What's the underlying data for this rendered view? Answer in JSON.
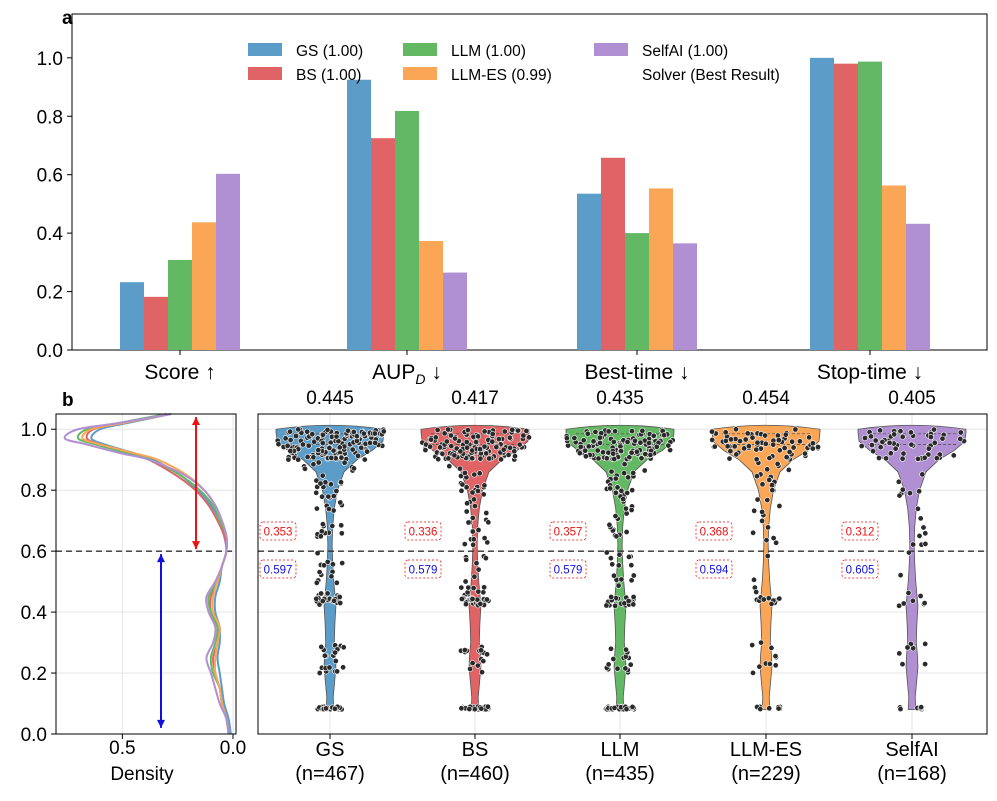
{
  "colors": {
    "gs": "#5b9cc9",
    "bs": "#e06466",
    "llm": "#63b863",
    "llmes": "#fba556",
    "selfai": "#b08fd2",
    "axis": "#000000",
    "grid": "#e6e6e6",
    "red_arrow": "#ee1111",
    "blue_arrow": "#1111dd"
  },
  "chart_data": [
    {
      "type": "bar",
      "panel_label": "a",
      "categories": [
        "Score ↑",
        "AUP_D ↓",
        "Best-time ↓",
        "Stop-time ↓"
      ],
      "category_auP": {
        "base": "AUP",
        "sub": "D",
        "suffix": " ↓"
      },
      "series": [
        {
          "key": "gs",
          "name": "GS (1.00)",
          "values": [
            0.232,
            0.925,
            0.535,
            1.0
          ]
        },
        {
          "key": "bs",
          "name": "BS (1.00)",
          "values": [
            0.182,
            0.725,
            0.658,
            0.98
          ]
        },
        {
          "key": "llm",
          "name": "LLM (1.00)",
          "values": [
            0.308,
            0.818,
            0.4,
            0.987
          ]
        },
        {
          "key": "llmes",
          "name": "LLM-ES (0.99)",
          "values": [
            0.437,
            0.373,
            0.553,
            0.563
          ]
        },
        {
          "key": "selfai",
          "name": "SelfAI (1.00)",
          "values": [
            0.603,
            0.265,
            0.365,
            0.432
          ]
        }
      ],
      "legend_extra": "Solver (Best Result)",
      "ylim": [
        0,
        1.15
      ],
      "yticks": [
        "0.0",
        "0.2",
        "0.4",
        "0.6",
        "0.8",
        "1.0"
      ],
      "grid": false,
      "legend_position": "upper-center"
    },
    {
      "type": "line",
      "panel_label": "b",
      "xlabel": "Density",
      "xticks": [
        "0.5",
        "0.0"
      ],
      "xlim": [
        0.8,
        0.0
      ],
      "ylim": [
        0,
        1.05
      ],
      "yticks": [
        "0.0",
        "0.2",
        "0.4",
        "0.6",
        "0.8",
        "1.0"
      ],
      "threshold": 0.6,
      "y": [
        0.0,
        0.05,
        0.1,
        0.15,
        0.2,
        0.25,
        0.3,
        0.35,
        0.4,
        0.45,
        0.5,
        0.55,
        0.6,
        0.65,
        0.7,
        0.75,
        0.8,
        0.85,
        0.9,
        0.92,
        0.95,
        0.97,
        1.0,
        1.02,
        1.05
      ],
      "series": [
        {
          "key": "gs",
          "density": [
            0.01,
            0.02,
            0.04,
            0.05,
            0.06,
            0.07,
            0.06,
            0.06,
            0.08,
            0.08,
            0.06,
            0.05,
            0.03,
            0.04,
            0.06,
            0.1,
            0.16,
            0.24,
            0.36,
            0.44,
            0.58,
            0.64,
            0.6,
            0.48,
            0.28
          ]
        },
        {
          "key": "bs",
          "density": [
            0.02,
            0.03,
            0.05,
            0.06,
            0.08,
            0.09,
            0.07,
            0.07,
            0.1,
            0.1,
            0.07,
            0.05,
            0.03,
            0.04,
            0.07,
            0.11,
            0.17,
            0.26,
            0.38,
            0.46,
            0.6,
            0.66,
            0.63,
            0.5,
            0.3
          ]
        },
        {
          "key": "llm",
          "density": [
            0.02,
            0.03,
            0.05,
            0.06,
            0.09,
            0.1,
            0.08,
            0.07,
            0.1,
            0.11,
            0.07,
            0.05,
            0.03,
            0.03,
            0.06,
            0.09,
            0.15,
            0.24,
            0.37,
            0.47,
            0.62,
            0.7,
            0.66,
            0.52,
            0.3
          ]
        },
        {
          "key": "llmes",
          "density": [
            0.02,
            0.03,
            0.05,
            0.06,
            0.08,
            0.08,
            0.07,
            0.06,
            0.09,
            0.09,
            0.07,
            0.05,
            0.03,
            0.03,
            0.05,
            0.08,
            0.13,
            0.21,
            0.34,
            0.44,
            0.6,
            0.68,
            0.64,
            0.5,
            0.28
          ]
        },
        {
          "key": "selfai",
          "density": [
            0.02,
            0.03,
            0.06,
            0.08,
            0.1,
            0.12,
            0.09,
            0.08,
            0.11,
            0.12,
            0.08,
            0.05,
            0.03,
            0.03,
            0.05,
            0.08,
            0.13,
            0.22,
            0.38,
            0.5,
            0.66,
            0.76,
            0.7,
            0.52,
            0.28
          ]
        }
      ]
    },
    {
      "type": "scatter",
      "subtype": "violin",
      "ylim": [
        0,
        1.05
      ],
      "threshold": 0.6,
      "grid": true,
      "groups": [
        {
          "key": "gs",
          "label": "GS",
          "n_label": "(n=467)",
          "n": 467,
          "mean": "0.445",
          "above": "0.353",
          "below": "0.597"
        },
        {
          "key": "bs",
          "label": "BS",
          "n_label": "(n=460)",
          "n": 460,
          "mean": "0.417",
          "above": "0.336",
          "below": "0.579"
        },
        {
          "key": "llm",
          "label": "LLM",
          "n_label": "(n=435)",
          "n": 435,
          "mean": "0.435",
          "above": "0.357",
          "below": "0.579"
        },
        {
          "key": "llmes",
          "label": "LLM-ES",
          "n_label": "(n=229)",
          "n": 229,
          "mean": "0.454",
          "above": "0.368",
          "below": "0.594"
        },
        {
          "key": "selfai",
          "label": "SelfAI",
          "n_label": "(n=168)",
          "n": 168,
          "mean": "0.405",
          "above": "0.312",
          "below": "0.605"
        }
      ],
      "violin_profile": {
        "y": [
          0.08,
          0.12,
          0.18,
          0.22,
          0.26,
          0.3,
          0.36,
          0.42,
          0.46,
          0.5,
          0.56,
          0.62,
          0.68,
          0.74,
          0.8,
          0.86,
          0.9,
          0.93,
          0.96,
          0.99
        ],
        "halfwidth": [
          0.07,
          0.06,
          0.09,
          0.11,
          0.1,
          0.08,
          0.09,
          0.11,
          0.09,
          0.07,
          0.05,
          0.04,
          0.05,
          0.08,
          0.14,
          0.26,
          0.5,
          0.78,
          0.98,
          1.0
        ]
      }
    }
  ]
}
